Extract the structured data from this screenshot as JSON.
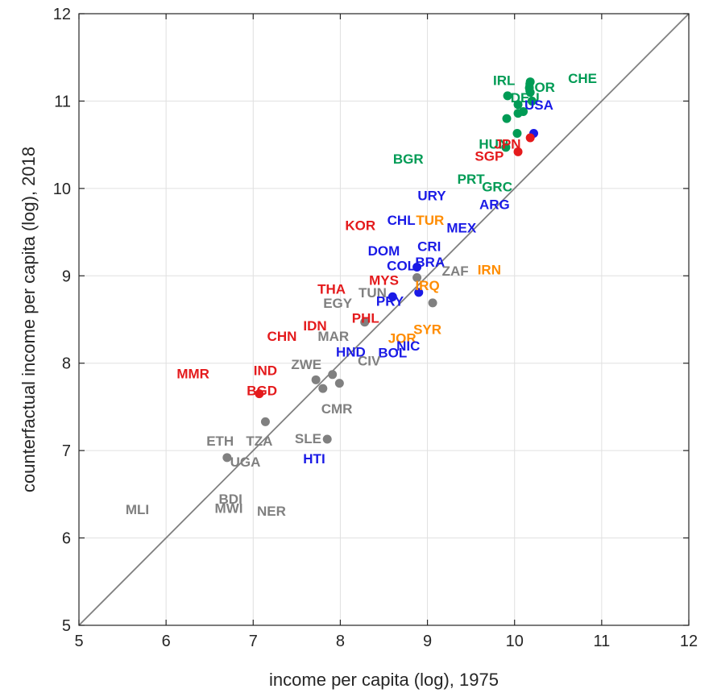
{
  "chart_data": {
    "type": "scatter",
    "title": "",
    "xlabel": "income per capita (log), 1975",
    "ylabel": "counterfactual income per capita (log), 2018",
    "xlim": [
      5,
      12
    ],
    "ylim": [
      5,
      12
    ],
    "xticks": [
      "5",
      "6",
      "7",
      "8",
      "9",
      "10",
      "11",
      "12"
    ],
    "yticks": [
      "5",
      "6",
      "7",
      "8",
      "9",
      "10",
      "11",
      "12"
    ],
    "grid": true,
    "reference_line": "y = x",
    "colors": {
      "green": "#009B55",
      "blue": "#1A1AE6",
      "red": "#E41A1C",
      "orange": "#FF8C00",
      "gray": "#808080",
      "diagonal": "#808080",
      "grid": "#E0E0E0",
      "axis": "#262626"
    },
    "points": [
      {
        "x": 9.92,
        "y": 11.06,
        "color": "green"
      },
      {
        "x": 10.18,
        "y": 11.22,
        "color": "green"
      },
      {
        "x": 10.17,
        "y": 11.15,
        "color": "green"
      },
      {
        "x": 10.18,
        "y": 11.1,
        "color": "green"
      },
      {
        "x": 10.04,
        "y": 10.96,
        "color": "green"
      },
      {
        "x": 10.2,
        "y": 11.0,
        "color": "green"
      },
      {
        "x": 10.1,
        "y": 10.88,
        "color": "green"
      },
      {
        "x": 10.04,
        "y": 10.86,
        "color": "green"
      },
      {
        "x": 9.91,
        "y": 10.8,
        "color": "green"
      },
      {
        "x": 10.03,
        "y": 10.63,
        "color": "green"
      },
      {
        "x": 9.9,
        "y": 10.47,
        "color": "green"
      },
      {
        "x": 10.22,
        "y": 10.63,
        "color": "blue"
      },
      {
        "x": 10.18,
        "y": 10.58,
        "color": "red"
      },
      {
        "x": 10.04,
        "y": 10.42,
        "color": "red"
      },
      {
        "x": 8.88,
        "y": 9.1,
        "color": "blue"
      },
      {
        "x": 8.9,
        "y": 8.81,
        "color": "blue"
      },
      {
        "x": 8.6,
        "y": 8.76,
        "color": "blue"
      },
      {
        "x": 8.88,
        "y": 8.98,
        "color": "gray"
      },
      {
        "x": 9.06,
        "y": 8.69,
        "color": "gray"
      },
      {
        "x": 8.28,
        "y": 8.47,
        "color": "gray"
      },
      {
        "x": 7.72,
        "y": 7.81,
        "color": "gray"
      },
      {
        "x": 7.91,
        "y": 7.87,
        "color": "gray"
      },
      {
        "x": 7.99,
        "y": 7.77,
        "color": "gray"
      },
      {
        "x": 7.8,
        "y": 7.71,
        "color": "gray"
      },
      {
        "x": 7.07,
        "y": 7.65,
        "color": "red"
      },
      {
        "x": 7.14,
        "y": 7.33,
        "color": "gray"
      },
      {
        "x": 7.85,
        "y": 7.13,
        "color": "gray"
      },
      {
        "x": 6.7,
        "y": 6.92,
        "color": "gray"
      }
    ],
    "labels": [
      {
        "text": "IRL",
        "x": 9.88,
        "y": 11.24,
        "color": "green"
      },
      {
        "text": "CHE",
        "x": 10.78,
        "y": 11.26,
        "color": "green"
      },
      {
        "text": "NOR",
        "x": 10.29,
        "y": 11.16,
        "color": "green"
      },
      {
        "text": "DEU",
        "x": 10.12,
        "y": 11.04,
        "color": "green"
      },
      {
        "text": "USA",
        "x": 10.28,
        "y": 10.96,
        "color": "blue"
      },
      {
        "text": "HUN",
        "x": 9.76,
        "y": 10.51,
        "color": "green"
      },
      {
        "text": "JPN",
        "x": 9.92,
        "y": 10.51,
        "color": "red"
      },
      {
        "text": "SGP",
        "x": 9.71,
        "y": 10.37,
        "color": "red"
      },
      {
        "text": "BGR",
        "x": 8.78,
        "y": 10.34,
        "color": "green"
      },
      {
        "text": "PRT",
        "x": 9.5,
        "y": 10.11,
        "color": "green"
      },
      {
        "text": "GRC",
        "x": 9.8,
        "y": 10.02,
        "color": "green"
      },
      {
        "text": "URY",
        "x": 9.05,
        "y": 9.92,
        "color": "blue"
      },
      {
        "text": "ARG",
        "x": 9.77,
        "y": 9.82,
        "color": "blue"
      },
      {
        "text": "KOR",
        "x": 8.23,
        "y": 9.58,
        "color": "red"
      },
      {
        "text": "CHL",
        "x": 8.7,
        "y": 9.64,
        "color": "blue"
      },
      {
        "text": "TUR",
        "x": 9.03,
        "y": 9.64,
        "color": "orange"
      },
      {
        "text": "MEX",
        "x": 9.39,
        "y": 9.55,
        "color": "blue"
      },
      {
        "text": "DOM",
        "x": 8.5,
        "y": 9.29,
        "color": "blue"
      },
      {
        "text": "CRI",
        "x": 9.02,
        "y": 9.34,
        "color": "blue"
      },
      {
        "text": "COL",
        "x": 8.7,
        "y": 9.12,
        "color": "blue"
      },
      {
        "text": "BRA",
        "x": 9.03,
        "y": 9.16,
        "color": "blue"
      },
      {
        "text": "ZAF",
        "x": 9.32,
        "y": 9.06,
        "color": "gray"
      },
      {
        "text": "IRN",
        "x": 9.71,
        "y": 9.07,
        "color": "orange"
      },
      {
        "text": "MYS",
        "x": 8.5,
        "y": 8.95,
        "color": "red"
      },
      {
        "text": "IRQ",
        "x": 9.0,
        "y": 8.89,
        "color": "orange"
      },
      {
        "text": "THA",
        "x": 7.9,
        "y": 8.85,
        "color": "red"
      },
      {
        "text": "TUN",
        "x": 8.37,
        "y": 8.81,
        "color": "gray"
      },
      {
        "text": "PRY",
        "x": 8.57,
        "y": 8.71,
        "color": "blue"
      },
      {
        "text": "EGY",
        "x": 7.97,
        "y": 8.69,
        "color": "gray"
      },
      {
        "text": "PHL",
        "x": 8.29,
        "y": 8.52,
        "color": "red"
      },
      {
        "text": "IDN",
        "x": 7.71,
        "y": 8.43,
        "color": "red"
      },
      {
        "text": "SYR",
        "x": 9.0,
        "y": 8.39,
        "color": "orange"
      },
      {
        "text": "CHN",
        "x": 7.33,
        "y": 8.31,
        "color": "red"
      },
      {
        "text": "MAR",
        "x": 7.92,
        "y": 8.31,
        "color": "gray"
      },
      {
        "text": "JOR",
        "x": 8.71,
        "y": 8.29,
        "color": "orange"
      },
      {
        "text": "NIC",
        "x": 8.78,
        "y": 8.2,
        "color": "blue"
      },
      {
        "text": "HND",
        "x": 8.12,
        "y": 8.13,
        "color": "blue"
      },
      {
        "text": "BOL",
        "x": 8.6,
        "y": 8.12,
        "color": "blue"
      },
      {
        "text": "CIV",
        "x": 8.33,
        "y": 8.03,
        "color": "gray"
      },
      {
        "text": "ZWE",
        "x": 7.61,
        "y": 7.99,
        "color": "gray"
      },
      {
        "text": "MMR",
        "x": 6.31,
        "y": 7.88,
        "color": "red"
      },
      {
        "text": "IND",
        "x": 7.14,
        "y": 7.92,
        "color": "red"
      },
      {
        "text": "BGD",
        "x": 7.1,
        "y": 7.69,
        "color": "red"
      },
      {
        "text": "CMR",
        "x": 7.96,
        "y": 7.48,
        "color": "gray"
      },
      {
        "text": "ETH",
        "x": 6.62,
        "y": 7.11,
        "color": "gray"
      },
      {
        "text": "TZA",
        "x": 7.07,
        "y": 7.11,
        "color": "gray"
      },
      {
        "text": "SLE",
        "x": 7.63,
        "y": 7.14,
        "color": "gray"
      },
      {
        "text": "HTI",
        "x": 7.7,
        "y": 6.91,
        "color": "blue"
      },
      {
        "text": "UGA",
        "x": 6.91,
        "y": 6.87,
        "color": "gray"
      },
      {
        "text": "BDI",
        "x": 6.74,
        "y": 6.45,
        "color": "gray"
      },
      {
        "text": "MLI",
        "x": 5.67,
        "y": 6.33,
        "color": "gray"
      },
      {
        "text": "MWI",
        "x": 6.72,
        "y": 6.34,
        "color": "gray"
      },
      {
        "text": "NER",
        "x": 7.21,
        "y": 6.31,
        "color": "gray"
      }
    ]
  }
}
